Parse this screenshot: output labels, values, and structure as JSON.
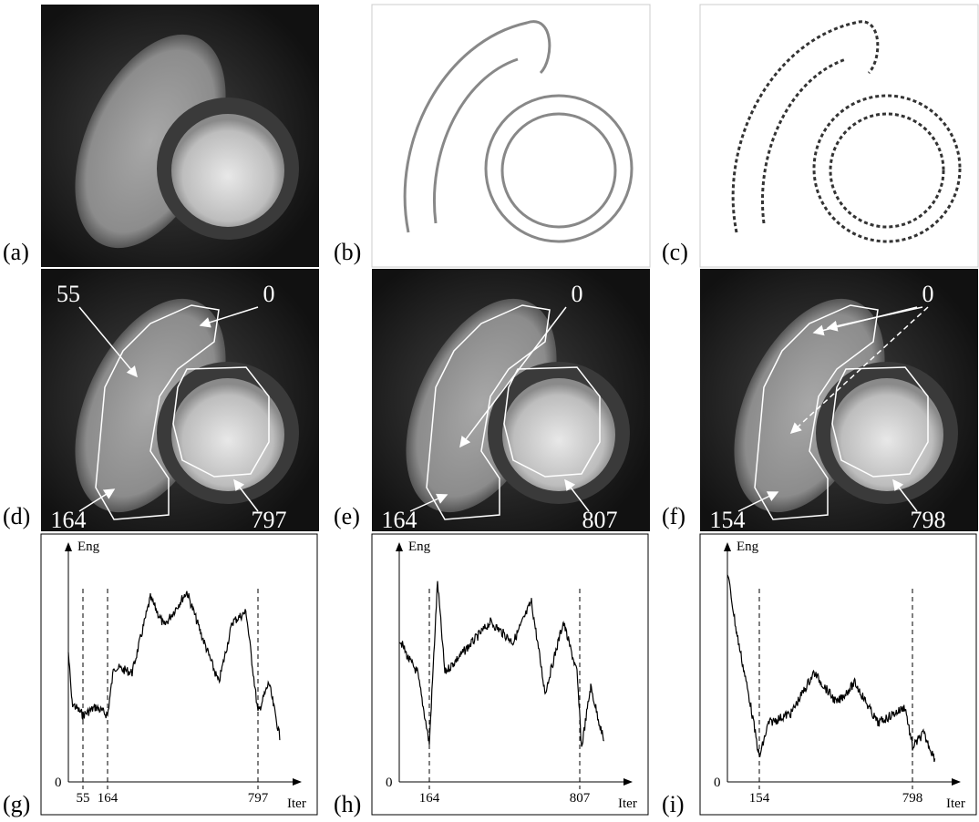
{
  "panels": [
    {
      "label": "(a)"
    },
    {
      "label": "(b)"
    },
    {
      "label": "(c)"
    },
    {
      "label": "(d)",
      "callouts": [
        55,
        0,
        164,
        797
      ]
    },
    {
      "label": "(e)",
      "callouts": [
        0,
        164,
        807
      ]
    },
    {
      "label": "(f)",
      "callouts": [
        0,
        154,
        798
      ]
    },
    {
      "label": "(g)",
      "y_axis": "Eng",
      "x_axis": "Iter",
      "origin": 0,
      "marks": [
        55,
        164,
        797
      ]
    },
    {
      "label": "(h)",
      "y_axis": "Eng",
      "x_axis": "Iter",
      "origin": 0,
      "marks": [
        164,
        807
      ]
    },
    {
      "label": "(i)",
      "y_axis": "Eng",
      "x_axis": "Iter",
      "origin": 0,
      "marks": [
        154,
        798
      ]
    }
  ]
}
